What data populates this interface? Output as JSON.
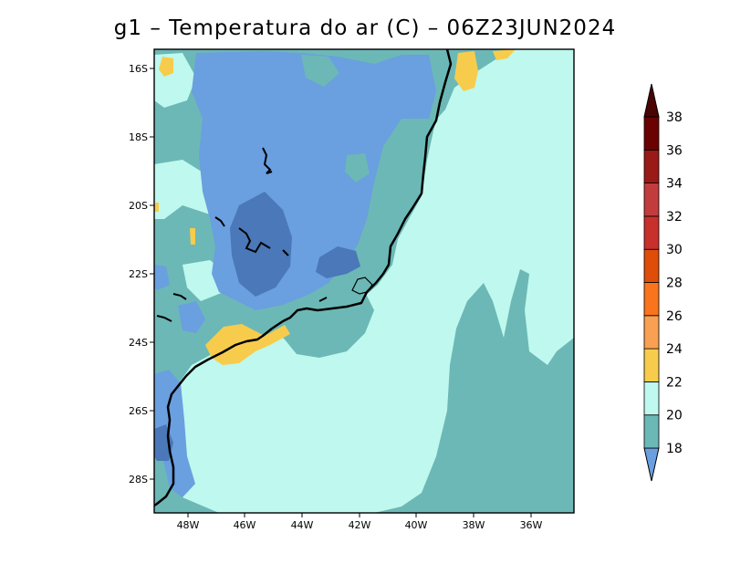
{
  "title": "g1 – Temperatura do ar (C) – 06Z23JUN2024",
  "map": {
    "lat_labels": [
      "16S",
      "18S",
      "20S",
      "22S",
      "24S",
      "26S",
      "28S"
    ],
    "lon_labels": [
      "48W",
      "46W",
      "44W",
      "42W",
      "40W",
      "38W",
      "36W"
    ]
  },
  "colorbar": {
    "levels": [
      "18",
      "20",
      "22",
      "24",
      "26",
      "28",
      "30",
      "32",
      "34",
      "36",
      "38"
    ],
    "colors": [
      "#6a9fe0",
      "#6cb8b6",
      "#bff8ee",
      "#f7cc4c",
      "#f9a052",
      "#f9741c",
      "#de4e08",
      "#c8302c",
      "#c23c3e",
      "#9a1a18",
      "#6a0202"
    ],
    "below_color": "#4a78b8",
    "above_color": "#4a0404"
  }
}
